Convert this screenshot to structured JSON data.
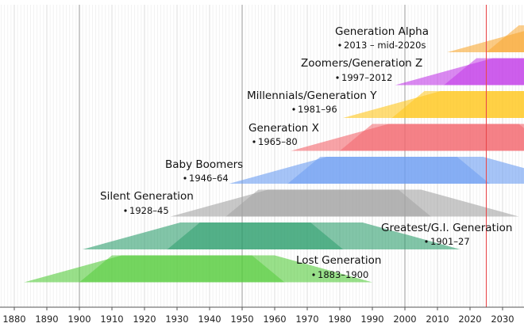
{
  "chart_data": {
    "type": "timeline",
    "title": "",
    "xlabel": "",
    "ylabel": "",
    "xlim": [
      1876,
      2036
    ],
    "current_year_marker": 2025,
    "x_ticks": [
      1880,
      1890,
      1900,
      1910,
      1920,
      1930,
      1940,
      1950,
      1960,
      1970,
      1980,
      1990,
      2000,
      2010,
      2020,
      2030
    ],
    "minor_grid_step": 1,
    "major_grid_lines": [
      1900,
      1950,
      2000
    ],
    "generations": [
      {
        "name": "Generation Alpha",
        "years": "2013 – mid-2020s",
        "birth_start": 2013,
        "birth_end": 2025,
        "color": "#f9a832"
      },
      {
        "name": "Zoomers/Generation Z",
        "years": "1997–2012",
        "birth_start": 1997,
        "birth_end": 2012,
        "color": "#c23be8"
      },
      {
        "name": "Millennials/Generation Y",
        "years": "1981–96",
        "birth_start": 1981,
        "birth_end": 1996,
        "color": "#ffc71d"
      },
      {
        "name": "Generation X",
        "years": "1965–80",
        "birth_start": 1965,
        "birth_end": 1980,
        "color": "#f3666d"
      },
      {
        "name": "Baby Boomers",
        "years": "1946–64",
        "birth_start": 1946,
        "birth_end": 1964,
        "color": "#6b9cf2"
      },
      {
        "name": "Silent Generation",
        "years": "1928–45",
        "birth_start": 1928,
        "birth_end": 1945,
        "color": "#a3a3a3"
      },
      {
        "name": "Greatest/G.I. Generation",
        "years": "1901–27",
        "birth_start": 1901,
        "birth_end": 1927,
        "color": "#2e9e6e"
      },
      {
        "name": "Lost Generation",
        "years": "1883–1900",
        "birth_start": 1883,
        "birth_end": 1900,
        "color": "#55cc3c"
      }
    ]
  }
}
